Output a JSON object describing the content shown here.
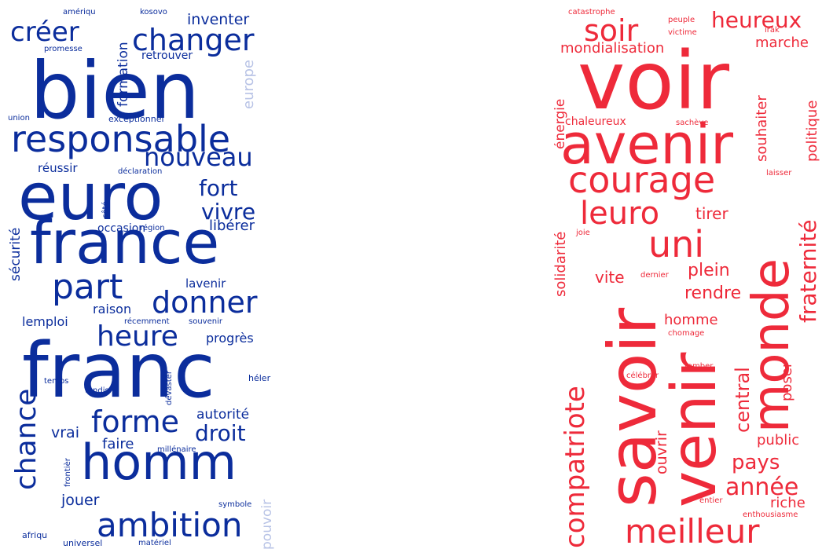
{
  "clouds": [
    {
      "name": "blue",
      "color": "#0b2d9c",
      "light_color": "#b8c3e6",
      "words": {
        "amériqu": "amériqu",
        "kosovo": "kosovo",
        "créer": "créer",
        "inventer": "inventer",
        "changer": "changer",
        "formation": "formation",
        "promesse": "promesse",
        "retrouver": "retrouver",
        "bien": "bien",
        "europe": "europe",
        "union": "union",
        "exceptionnel": "exceptionnel",
        "responsable": "responsable",
        "nouveau": "nouveau",
        "réussir": "réussir",
        "déclaration": "déclaration",
        "euro": "euro",
        "fort": "fort",
        "côté": "côté",
        "vivre": "vivre",
        "sécurité": "sécurité",
        "france": "france",
        "occasion": "occasion",
        "région": "région",
        "libérer": "libérer",
        "part": "part",
        "donner": "donner",
        "lavenir": "lavenir",
        "raison": "raison",
        "lemploi": "lemploi",
        "récemment": "récemment",
        "souvenir": "souvenir",
        "heure": "heure",
        "progrès": "progrès",
        "franc": "franc",
        "dévaster": "dévaster",
        "temps": "temps",
        "tandis": "tandis",
        "héler": "héler",
        "autorité": "autorité",
        "chance": "chance",
        "forme": "forme",
        "droit": "droit",
        "vrai": "vrai",
        "faire": "faire",
        "millénaire": "millénaire",
        "frontièr": "frontièr",
        "homm": "homm",
        "pouvoir": "pouvoir",
        "jouer": "jouer",
        "symbole": "symbole",
        "ambition": "ambition",
        "afriqu": "afriqu",
        "universel": "universel",
        "matériel": "matériel"
      }
    },
    {
      "name": "red",
      "color": "#ee2a3a",
      "words": {
        "catastrophe": "catastrophe",
        "peuple": "peuple",
        "victime": "victime",
        "irak": "irak",
        "soir": "soir",
        "heureux": "heureux",
        "mondialisation": "mondialisation",
        "marche": "marche",
        "voir": "voir",
        "énergie": "énergie",
        "chaleureux": "chaleureux",
        "sachève": "sachève",
        "souhaiter": "souhaiter",
        "politique": "politique",
        "avenir": "avenir",
        "courage": "courage",
        "laisser": "laisser",
        "fraternité": "fraternité",
        "solidarité": "solidarité",
        "leuro": "leuro",
        "tirer": "tirer",
        "joie": "joie",
        "monde": "monde",
        "uni": "uni",
        "savoir": "savoir",
        "venir": "venir",
        "plein": "plein",
        "vite": "vite",
        "dernier": "dernier",
        "rendre": "rendre",
        "compatriote": "compatriote",
        "homme": "homme",
        "chomage": "chomage",
        "central": "central",
        "célébrer": "célébrer",
        "tomber": "tomber",
        "poser": "poser",
        "ouvrir": "ouvrir",
        "public": "public",
        "pays": "pays",
        "année": "année",
        "entier": "entier",
        "riche": "riche",
        "enthousiasme": "enthousiasme",
        "meilleur": "meilleur"
      }
    }
  ]
}
